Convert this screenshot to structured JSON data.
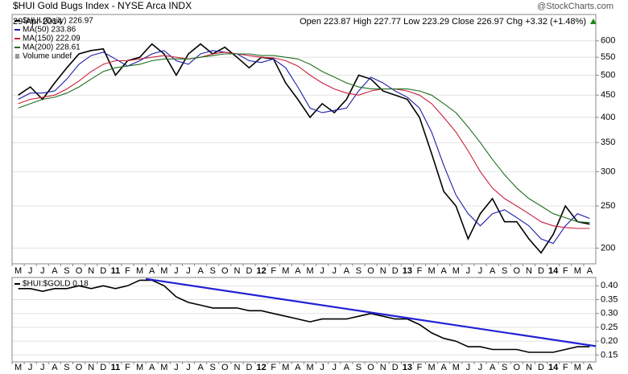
{
  "chart_data": [
    {
      "type": "line",
      "title": "$HUI Gold Bugs Index - NYSE Arca INDX",
      "subtitle": "29-Apr-2014",
      "quote": "Open 223.87  High 227.77  Low 223.29  Close 226.97  Chg +3.32 (+1.48%)",
      "watermark": "@StockCharts.com",
      "volume_note": "Volume undef",
      "log_scale": true,
      "grid": true,
      "categories": [
        "M",
        "J",
        "J",
        "A",
        "S",
        "O",
        "N",
        "D",
        "11",
        "F",
        "M",
        "A",
        "M",
        "J",
        "J",
        "A",
        "S",
        "O",
        "N",
        "D",
        "12",
        "F",
        "M",
        "A",
        "M",
        "J",
        "J",
        "A",
        "S",
        "O",
        "N",
        "D",
        "13",
        "F",
        "M",
        "A",
        "M",
        "J",
        "J",
        "A",
        "S",
        "O",
        "N",
        "D",
        "14",
        "F",
        "M",
        "A"
      ],
      "ylim": [
        184,
        690
      ],
      "yticks": [
        200,
        250,
        300,
        350,
        400,
        450,
        500,
        550,
        600
      ],
      "series": [
        {
          "name": "$HUI (Daily) 226.97",
          "color": "#000000",
          "values": [
            450,
            470,
            440,
            480,
            520,
            560,
            570,
            575,
            500,
            540,
            550,
            590,
            560,
            500,
            560,
            590,
            560,
            580,
            550,
            520,
            550,
            545,
            480,
            440,
            400,
            430,
            410,
            440,
            500,
            490,
            460,
            450,
            440,
            400,
            330,
            270,
            250,
            210,
            240,
            260,
            230,
            230,
            210,
            195,
            215,
            250,
            230,
            227
          ]
        },
        {
          "name": "MA(50) 233.86",
          "color": "#1c1ca8",
          "values": [
            440,
            455,
            455,
            460,
            490,
            530,
            555,
            565,
            545,
            525,
            540,
            560,
            570,
            540,
            530,
            560,
            570,
            565,
            560,
            540,
            535,
            545,
            520,
            470,
            420,
            410,
            415,
            420,
            460,
            495,
            480,
            460,
            445,
            420,
            370,
            310,
            265,
            240,
            225,
            240,
            245,
            235,
            225,
            210,
            205,
            225,
            240,
            234
          ]
        },
        {
          "name": "MA(150) 222.09",
          "color": "#c8203c",
          "values": [
            430,
            440,
            445,
            450,
            465,
            485,
            510,
            530,
            540,
            540,
            545,
            550,
            555,
            550,
            545,
            550,
            560,
            565,
            560,
            555,
            550,
            548,
            540,
            525,
            500,
            480,
            465,
            455,
            450,
            460,
            465,
            465,
            460,
            450,
            430,
            400,
            370,
            335,
            300,
            275,
            260,
            250,
            240,
            230,
            225,
            223,
            222,
            222
          ]
        },
        {
          "name": "MA(200) 228.61",
          "color": "#1f6e1f",
          "values": [
            420,
            430,
            440,
            445,
            455,
            470,
            490,
            510,
            520,
            525,
            530,
            540,
            545,
            545,
            545,
            550,
            555,
            560,
            560,
            560,
            555,
            555,
            550,
            545,
            530,
            510,
            495,
            480,
            470,
            465,
            465,
            465,
            465,
            460,
            450,
            430,
            410,
            380,
            350,
            320,
            295,
            275,
            260,
            250,
            240,
            235,
            230,
            229
          ]
        }
      ]
    },
    {
      "type": "line",
      "grid": true,
      "categories": [
        "M",
        "J",
        "J",
        "A",
        "S",
        "O",
        "N",
        "D",
        "11",
        "F",
        "M",
        "A",
        "M",
        "J",
        "J",
        "A",
        "S",
        "O",
        "N",
        "D",
        "12",
        "F",
        "M",
        "A",
        "M",
        "J",
        "J",
        "A",
        "S",
        "O",
        "N",
        "D",
        "13",
        "F",
        "M",
        "A",
        "M",
        "J",
        "J",
        "A",
        "S",
        "O",
        "N",
        "D",
        "14",
        "F",
        "M",
        "A"
      ],
      "ylim": [
        0.125,
        0.43
      ],
      "yticks": [
        0.15,
        {
          "value": 0.2,
          "label": "0.20"
        },
        0.25,
        {
          "value": 0.3,
          "label": "0.30"
        },
        0.35,
        {
          "value": 0.4,
          "label": "0.40"
        }
      ],
      "series": [
        {
          "name": "$HUI:$GOLD 0.18",
          "color": "#000000",
          "values": [
            0.39,
            0.39,
            0.38,
            0.39,
            0.39,
            0.4,
            0.39,
            0.4,
            0.39,
            0.4,
            0.42,
            0.42,
            0.4,
            0.36,
            0.34,
            0.33,
            0.32,
            0.32,
            0.32,
            0.31,
            0.31,
            0.3,
            0.29,
            0.28,
            0.27,
            0.28,
            0.28,
            0.28,
            0.29,
            0.3,
            0.29,
            0.28,
            0.28,
            0.26,
            0.23,
            0.21,
            0.2,
            0.18,
            0.18,
            0.17,
            0.17,
            0.17,
            0.16,
            0.16,
            0.16,
            0.17,
            0.18,
            0.18
          ]
        }
      ],
      "trendline": {
        "color": "#2222d4",
        "x": [
          11,
          48
        ],
        "values": [
          0.425,
          0.182
        ]
      }
    }
  ]
}
